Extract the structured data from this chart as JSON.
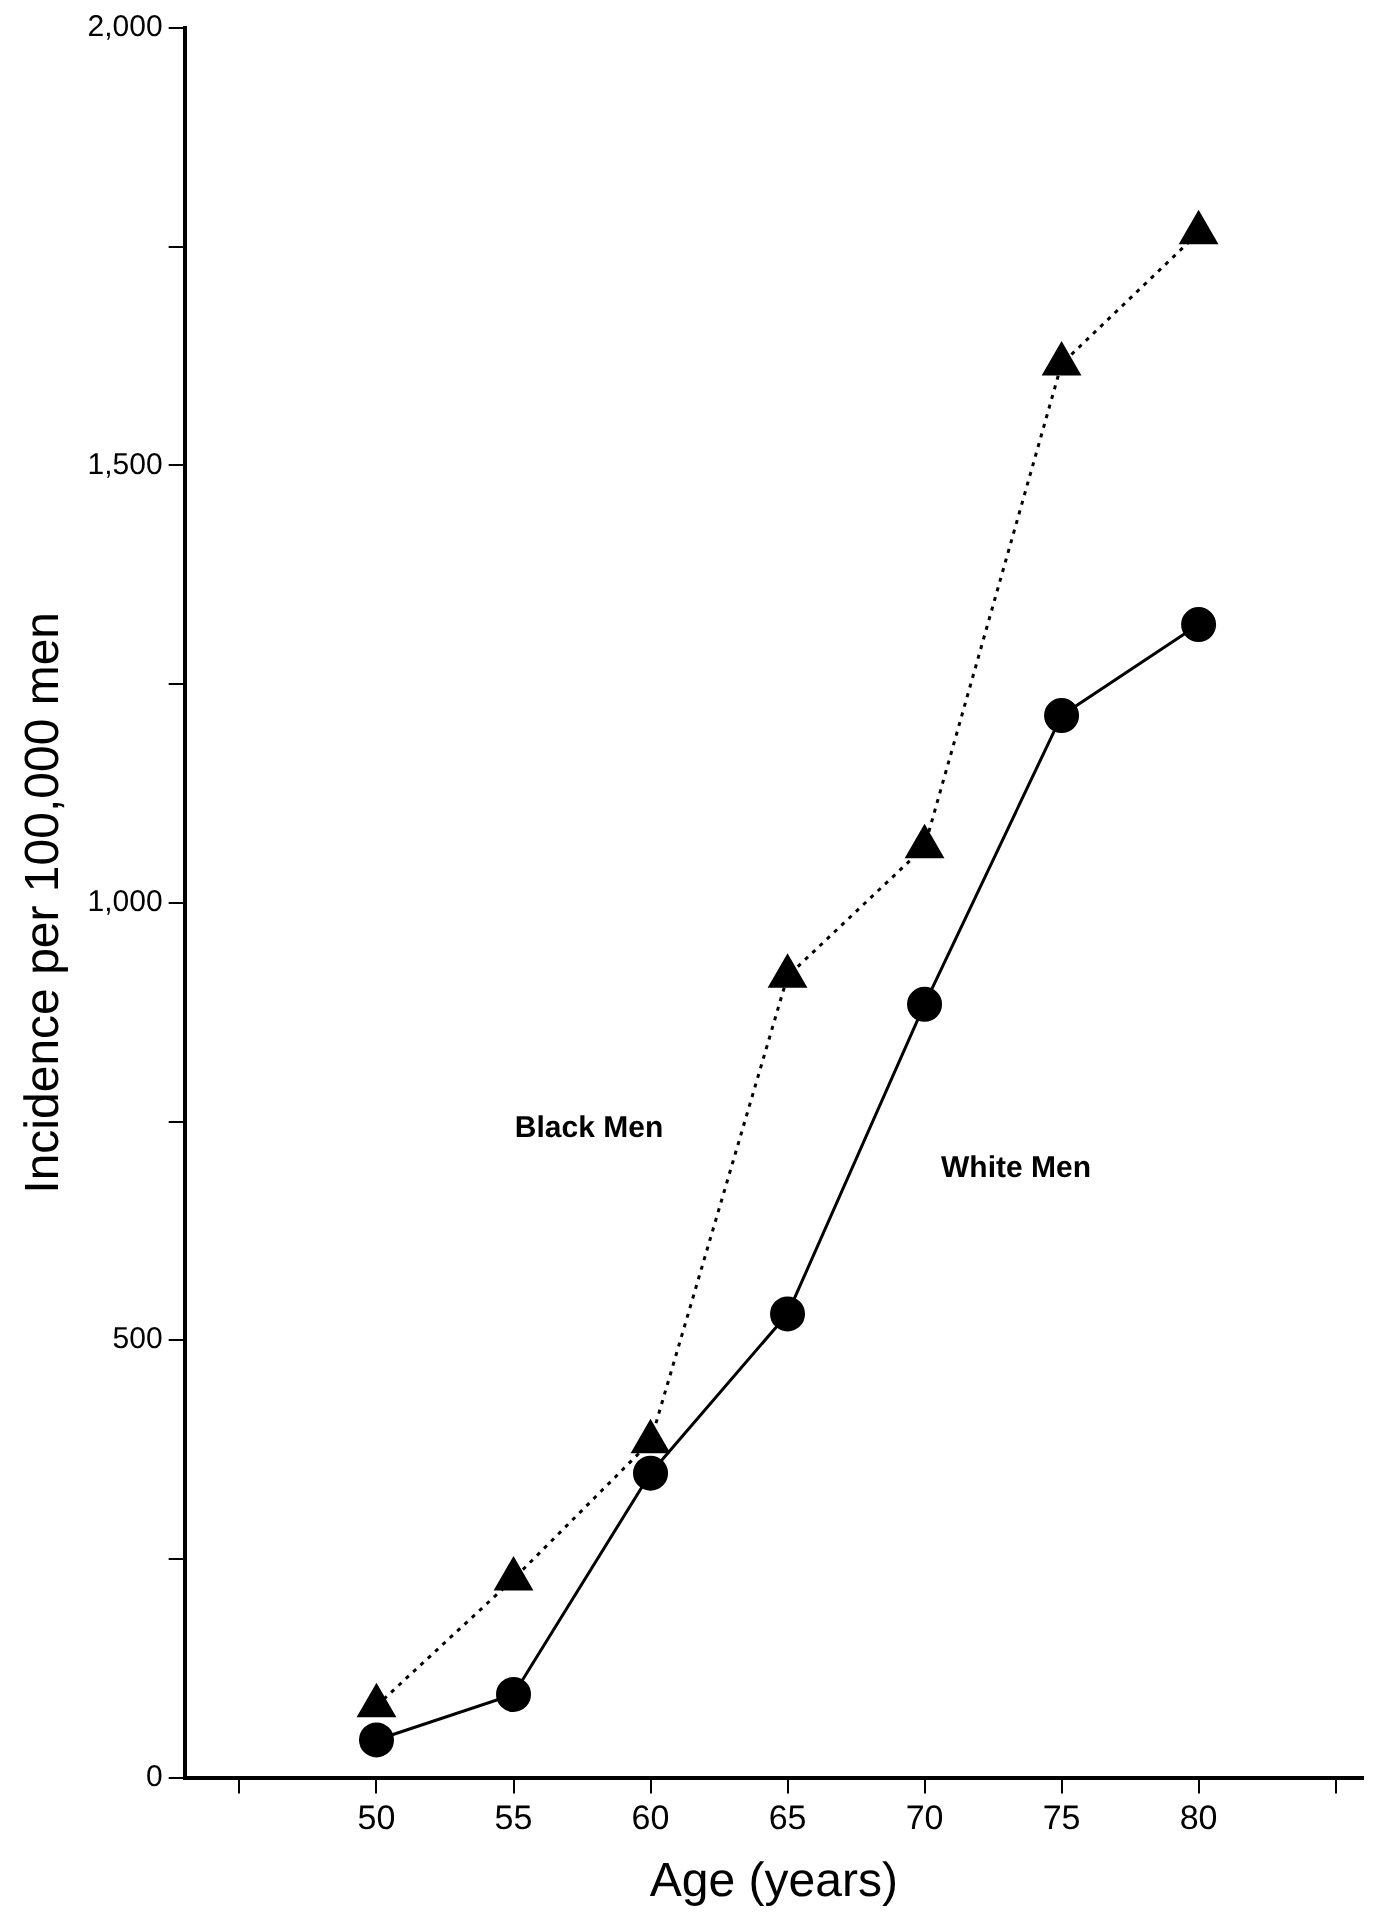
{
  "chart_data": {
    "type": "line",
    "xlabel": "Age (years)",
    "ylabel": "Incidence per 100,000 men",
    "x": [
      50,
      55,
      60,
      65,
      70,
      75,
      80
    ],
    "series": [
      {
        "name": "Black Men",
        "color": "#000000",
        "marker": "triangle",
        "line_style": "dotted",
        "values": [
          82,
          227,
          384,
          916,
          1064,
          1616,
          1766
        ]
      },
      {
        "name": "White Men",
        "color": "#000000",
        "marker": "circle",
        "line_style": "solid",
        "values": [
          43,
          95,
          348,
          530,
          884,
          1214,
          1318
        ]
      }
    ],
    "xlim": [
      43,
      86
    ],
    "xticks": [
      {
        "value": 45,
        "label": null
      },
      50,
      55,
      60,
      65,
      70,
      75,
      80,
      {
        "value": 85,
        "label": null
      }
    ],
    "ylim": [
      0,
      2000
    ],
    "yticks": [
      0,
      {
        "value": 250,
        "label": null
      },
      500,
      {
        "value": 750,
        "label": null
      },
      {
        "value": 1000,
        "label": "1,000"
      },
      {
        "value": 1250,
        "label": null
      },
      {
        "value": 1500,
        "label": "1,500"
      },
      {
        "value": 1750,
        "label": null
      },
      {
        "value": 2000,
        "label": "2,000"
      }
    ],
    "grid": false,
    "legend": false
  }
}
